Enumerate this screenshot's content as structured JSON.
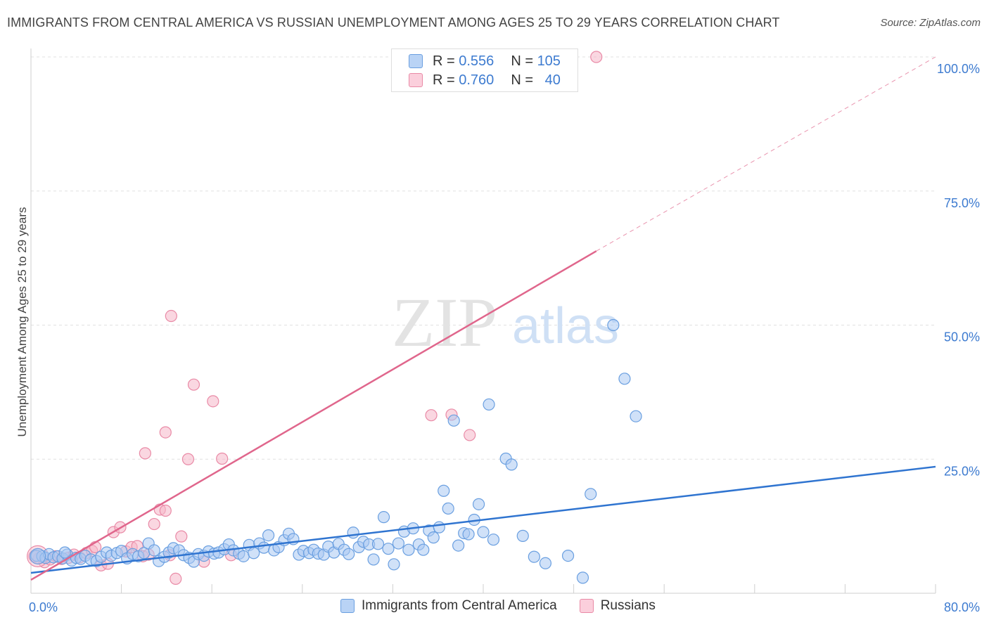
{
  "title": "IMMIGRANTS FROM CENTRAL AMERICA VS RUSSIAN UNEMPLOYMENT AMONG AGES 25 TO 29 YEARS CORRELATION CHART",
  "source": "Source: ZipAtlas.com",
  "watermark": {
    "zip": "ZIP",
    "atlas": "atlas"
  },
  "legend": {
    "series": [
      {
        "r_label": "R =",
        "r_value": "0.556",
        "n_label": "N =",
        "n_value": "105"
      },
      {
        "r_label": "R =",
        "r_value": "0.760",
        "n_label": "N =",
        "n_value": "40"
      }
    ]
  },
  "colors": {
    "blue_fill": "#a9c8f2",
    "blue_stroke": "#6a9fe0",
    "blue_line": "#2f74d0",
    "pink_fill": "#f6b6c8",
    "pink_stroke": "#e98aa6",
    "pink_line": "#e0668c",
    "grid": "#e0e0e0",
    "tick_text": "#3d7bd0"
  },
  "chart_data": {
    "type": "scatter",
    "title": "IMMIGRANTS FROM CENTRAL AMERICA VS RUSSIAN UNEMPLOYMENT AMONG AGES 25 TO 29 YEARS CORRELATION CHART",
    "xlabel": "",
    "ylabel": "Unemployment Among Ages 25 to 29 years",
    "xlim": [
      0,
      80
    ],
    "ylim": [
      0,
      100
    ],
    "x_tick_labels": [
      "0.0%",
      "80.0%"
    ],
    "y_ticks": [
      25,
      50,
      75,
      100
    ],
    "y_tick_labels": [
      "25.0%",
      "50.0%",
      "75.0%",
      "100.0%"
    ],
    "grid": true,
    "series": [
      {
        "name": "Immigrants from Central America",
        "color": "#a9c8f2",
        "trendline": {
          "x": [
            0,
            80
          ],
          "y": [
            3.8,
            23.6
          ]
        },
        "points": [
          [
            0.5,
            7.0
          ],
          [
            1.0,
            6.9
          ],
          [
            1.3,
            6.6
          ],
          [
            1.6,
            7.3
          ],
          [
            2.0,
            6.7
          ],
          [
            2.4,
            6.9
          ],
          [
            2.8,
            6.5
          ],
          [
            3.2,
            7.2
          ],
          [
            3.6,
            6.1
          ],
          [
            4.0,
            6.6
          ],
          [
            4.4,
            6.4
          ],
          [
            4.8,
            7.0
          ],
          [
            5.3,
            6.3
          ],
          [
            5.8,
            6.0
          ],
          [
            6.2,
            6.8
          ],
          [
            6.7,
            7.6
          ],
          [
            7.1,
            7.0
          ],
          [
            7.6,
            7.5
          ],
          [
            8.0,
            7.9
          ],
          [
            8.5,
            6.5
          ],
          [
            9.0,
            7.3
          ],
          [
            9.5,
            6.9
          ],
          [
            10.0,
            7.5
          ],
          [
            10.4,
            9.3
          ],
          [
            10.9,
            8.0
          ],
          [
            11.3,
            6.0
          ],
          [
            11.8,
            6.8
          ],
          [
            12.2,
            7.6
          ],
          [
            12.6,
            8.4
          ],
          [
            13.1,
            8.0
          ],
          [
            13.5,
            7.1
          ],
          [
            14.0,
            6.6
          ],
          [
            14.4,
            5.9
          ],
          [
            14.8,
            7.3
          ],
          [
            15.3,
            7.0
          ],
          [
            15.7,
            7.8
          ],
          [
            16.2,
            7.4
          ],
          [
            16.6,
            7.6
          ],
          [
            17.1,
            8.2
          ],
          [
            17.5,
            9.1
          ],
          [
            17.9,
            8.0
          ],
          [
            18.4,
            7.4
          ],
          [
            18.8,
            6.9
          ],
          [
            19.3,
            9.0
          ],
          [
            19.7,
            7.5
          ],
          [
            20.2,
            9.3
          ],
          [
            20.6,
            8.5
          ],
          [
            21.0,
            10.8
          ],
          [
            21.5,
            8.0
          ],
          [
            21.9,
            8.6
          ],
          [
            22.4,
            9.9
          ],
          [
            22.8,
            11.1
          ],
          [
            23.2,
            10.1
          ],
          [
            23.7,
            7.2
          ],
          [
            24.1,
            7.9
          ],
          [
            24.6,
            7.5
          ],
          [
            25.0,
            8.1
          ],
          [
            25.4,
            7.4
          ],
          [
            25.9,
            7.2
          ],
          [
            26.3,
            8.7
          ],
          [
            26.8,
            7.6
          ],
          [
            27.2,
            9.2
          ],
          [
            27.7,
            8.1
          ],
          [
            28.1,
            7.3
          ],
          [
            28.5,
            11.3
          ],
          [
            29.0,
            8.6
          ],
          [
            29.4,
            9.6
          ],
          [
            29.9,
            9.1
          ],
          [
            30.3,
            6.3
          ],
          [
            30.7,
            9.2
          ],
          [
            31.2,
            14.2
          ],
          [
            31.6,
            8.3
          ],
          [
            32.1,
            5.4
          ],
          [
            32.5,
            9.3
          ],
          [
            33.0,
            11.5
          ],
          [
            33.4,
            8.1
          ],
          [
            33.8,
            12.1
          ],
          [
            34.3,
            9.1
          ],
          [
            34.7,
            8.1
          ],
          [
            35.2,
            11.7
          ],
          [
            35.6,
            10.4
          ],
          [
            36.1,
            12.3
          ],
          [
            36.5,
            19.1
          ],
          [
            36.9,
            15.8
          ],
          [
            37.4,
            32.2
          ],
          [
            37.8,
            8.9
          ],
          [
            38.3,
            11.2
          ],
          [
            38.7,
            11.0
          ],
          [
            39.2,
            13.7
          ],
          [
            39.6,
            16.6
          ],
          [
            40.0,
            11.4
          ],
          [
            40.5,
            35.2
          ],
          [
            40.9,
            10.0
          ],
          [
            42.0,
            25.1
          ],
          [
            42.5,
            24.0
          ],
          [
            43.5,
            10.7
          ],
          [
            44.5,
            6.8
          ],
          [
            45.5,
            5.6
          ],
          [
            47.5,
            7.0
          ],
          [
            48.8,
            2.9
          ],
          [
            49.5,
            18.5
          ],
          [
            51.5,
            50.0
          ],
          [
            52.5,
            40.0
          ],
          [
            53.5,
            33.0
          ],
          [
            3.0,
            7.6
          ]
        ]
      },
      {
        "name": "Russians",
        "color": "#f6b6c8",
        "trendline": {
          "x": [
            0,
            50
          ],
          "y": [
            2.5,
            63.8
          ]
        },
        "trendline_dashed": {
          "x": [
            50,
            80
          ],
          "y": [
            63.8,
            100
          ]
        },
        "points": [
          [
            0.3,
            6.9
          ],
          [
            0.7,
            6.5
          ],
          [
            1.2,
            5.8
          ],
          [
            1.7,
            6.3
          ],
          [
            2.2,
            6.9
          ],
          [
            2.7,
            6.4
          ],
          [
            3.3,
            6.6
          ],
          [
            3.8,
            7.2
          ],
          [
            4.3,
            6.7
          ],
          [
            4.9,
            7.5
          ],
          [
            5.4,
            7.9
          ],
          [
            5.7,
            8.6
          ],
          [
            6.2,
            5.2
          ],
          [
            6.8,
            5.5
          ],
          [
            7.3,
            11.4
          ],
          [
            7.9,
            12.3
          ],
          [
            8.4,
            7.8
          ],
          [
            8.9,
            8.6
          ],
          [
            9.4,
            8.8
          ],
          [
            9.9,
            6.9
          ],
          [
            10.4,
            7.2
          ],
          [
            10.9,
            12.9
          ],
          [
            11.4,
            15.6
          ],
          [
            11.9,
            15.4
          ],
          [
            12.3,
            7.1
          ],
          [
            12.8,
            2.7
          ],
          [
            13.3,
            10.6
          ],
          [
            13.9,
            25.0
          ],
          [
            14.4,
            38.9
          ],
          [
            15.3,
            5.9
          ],
          [
            16.1,
            35.8
          ],
          [
            16.9,
            25.1
          ],
          [
            17.7,
            7.1
          ],
          [
            12.4,
            51.7
          ],
          [
            11.9,
            30.0
          ],
          [
            10.1,
            26.1
          ],
          [
            35.4,
            33.2
          ],
          [
            37.2,
            33.3
          ],
          [
            38.8,
            29.5
          ],
          [
            50.0,
            100.0
          ]
        ]
      }
    ]
  }
}
